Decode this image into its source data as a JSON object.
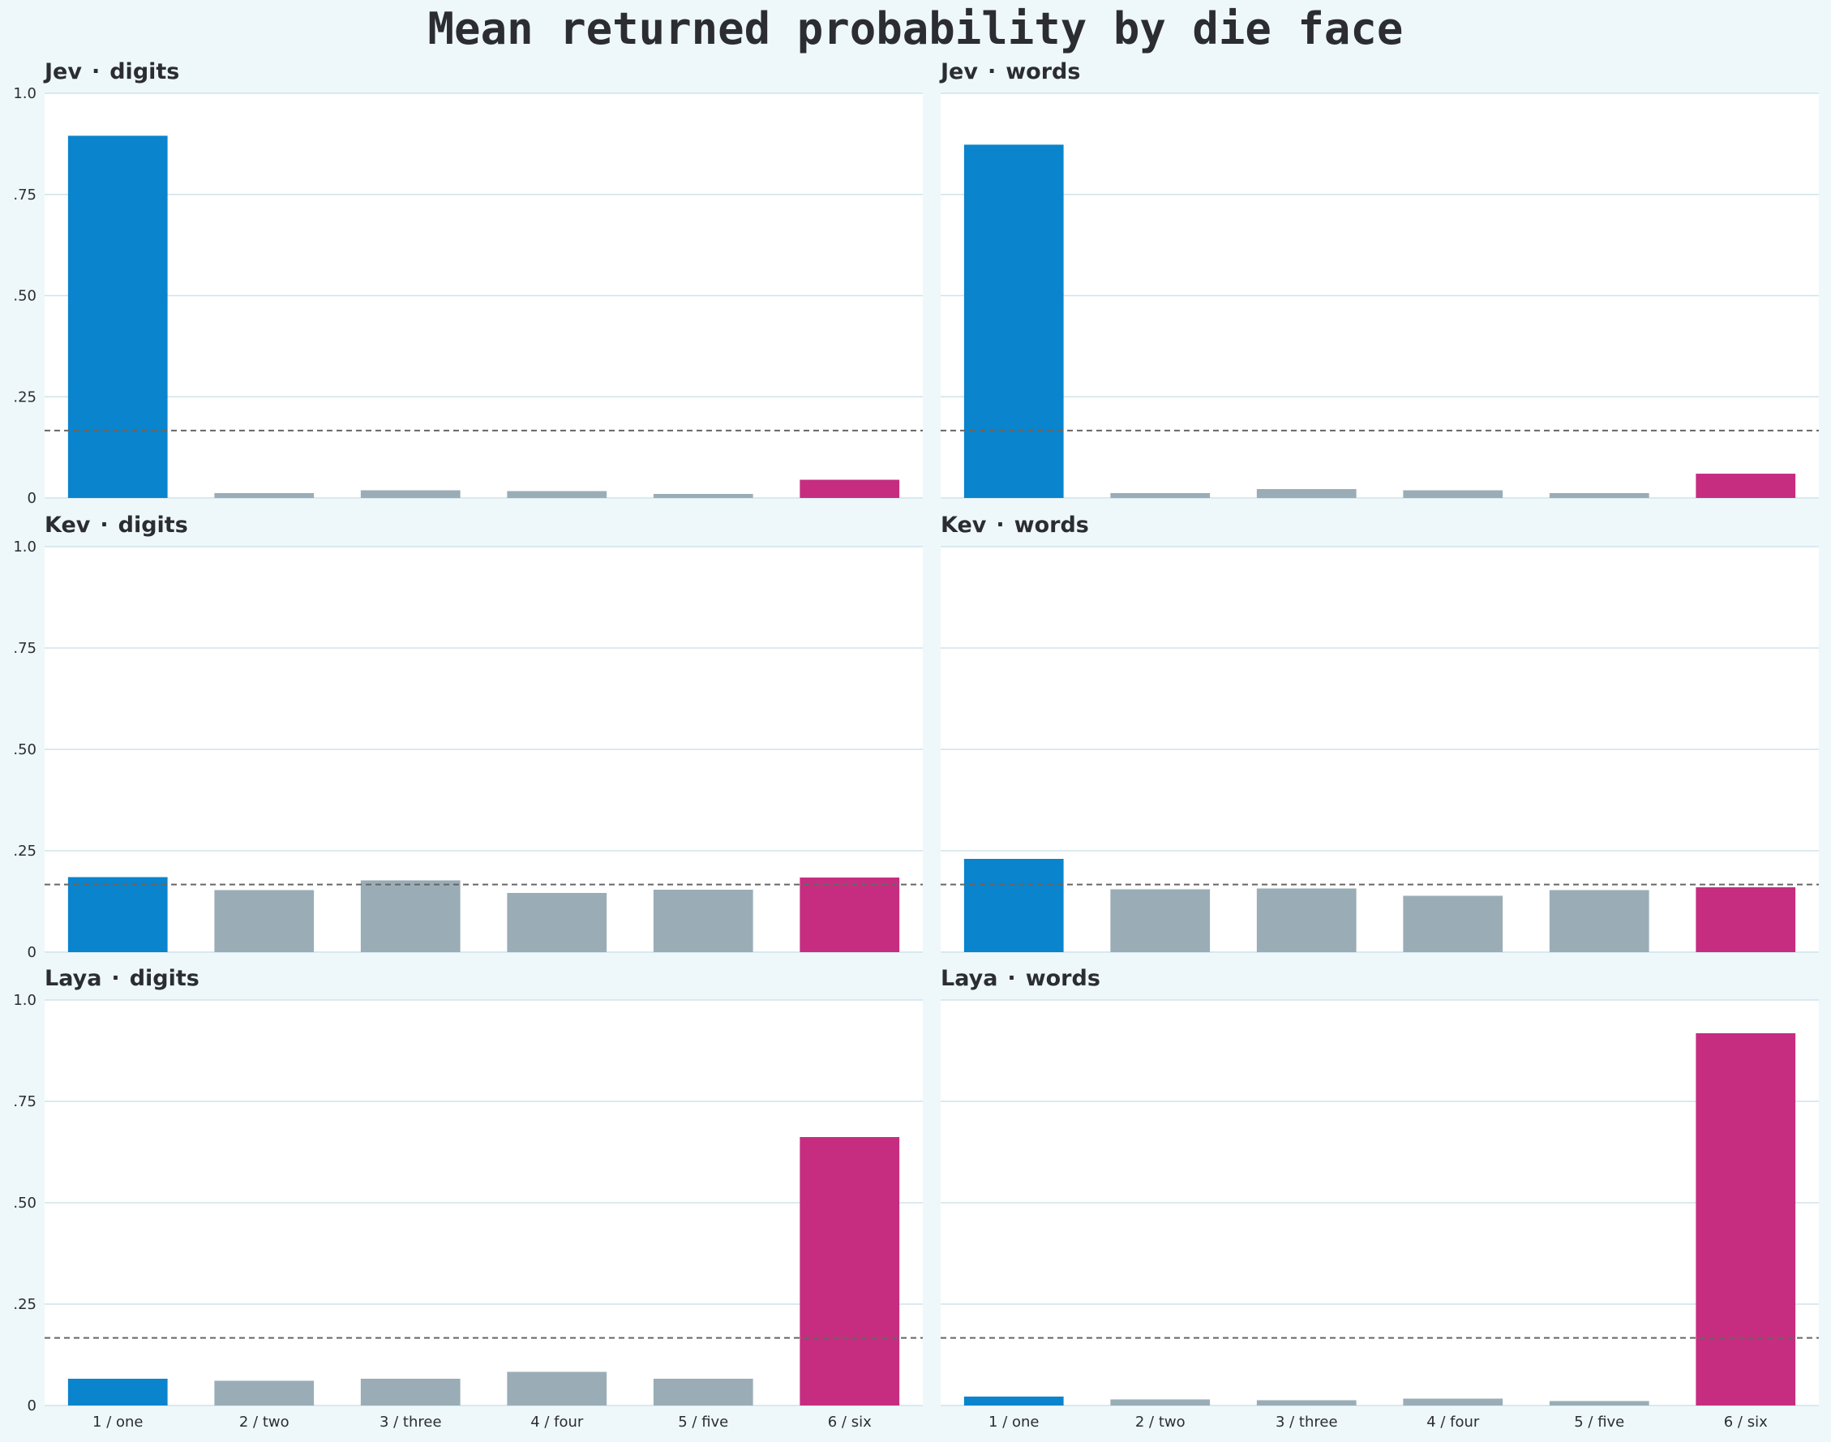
{
  "chart_data": {
    "type": "bar",
    "title": "Mean returned probability by die face",
    "categories": [
      "1 / one",
      "2 / two",
      "3 / three",
      "4 / four",
      "5 / five",
      "6 / six"
    ],
    "ylim": [
      0,
      1
    ],
    "yticks": [
      0,
      0.25,
      0.5,
      0.75,
      1
    ],
    "ytick_labels": [
      "0",
      ".25",
      ".50",
      ".75",
      "1.0"
    ],
    "reference_line": 0.1667,
    "grid": true,
    "colors": {
      "first": "#0a84cc",
      "middle": "#9aadb6",
      "last": "#c62d80",
      "gridline": "#cfe3ea",
      "reference": "#666666"
    },
    "panels": [
      {
        "model": "Jev",
        "format": "digits",
        "values": [
          0.895,
          0.012,
          0.019,
          0.017,
          0.01,
          0.045
        ]
      },
      {
        "model": "Jev",
        "format": "words",
        "values": [
          0.873,
          0.012,
          0.022,
          0.019,
          0.012,
          0.06
        ]
      },
      {
        "model": "Kev",
        "format": "digits",
        "values": [
          0.185,
          0.153,
          0.177,
          0.146,
          0.154,
          0.184
        ]
      },
      {
        "model": "Kev",
        "format": "words",
        "values": [
          0.23,
          0.155,
          0.157,
          0.139,
          0.153,
          0.16
        ]
      },
      {
        "model": "Laya",
        "format": "digits",
        "values": [
          0.066,
          0.061,
          0.066,
          0.083,
          0.066,
          0.662
        ]
      },
      {
        "model": "Laya",
        "format": "words",
        "values": [
          0.022,
          0.015,
          0.013,
          0.017,
          0.011,
          0.918
        ]
      }
    ]
  }
}
